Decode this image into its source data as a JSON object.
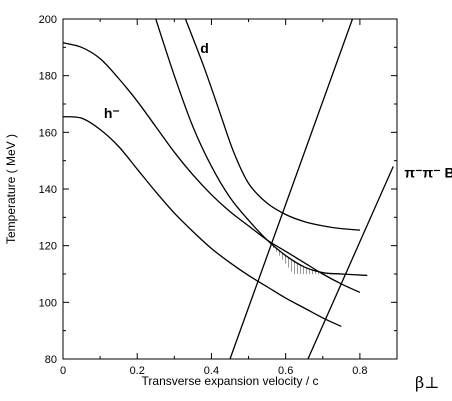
{
  "chart_data": {
    "type": "line",
    "title": "",
    "xlabel": "Transverse expansion velocity / c",
    "ylabel": "Temperature ( MeV )",
    "beta_symbol": "β⊥",
    "xlim": [
      0,
      0.9
    ],
    "ylim": [
      80,
      200
    ],
    "x_ticks": [
      0,
      0.2,
      0.4,
      0.6,
      0.8
    ],
    "x_tick_labels": [
      "0",
      "0.2",
      "0.4",
      "0.6",
      "0.8"
    ],
    "y_ticks": [
      80,
      100,
      120,
      140,
      160,
      180,
      200
    ],
    "y_tick_labels": [
      "80",
      "100",
      "120",
      "140",
      "160",
      "180",
      "200"
    ],
    "grid": false,
    "curve_labels": [
      {
        "text": "h⁻",
        "x": 0.11,
        "y": 165
      },
      {
        "text": "d",
        "x": 0.37,
        "y": 188
      },
      {
        "text": "π⁻π⁻ BE",
        "x": 0.92,
        "y": 144
      }
    ],
    "series": [
      {
        "values": [
          [
            0,
            191.6
          ],
          [
            0.05,
            190
          ],
          [
            0.1,
            186
          ],
          [
            0.15,
            179
          ],
          [
            0.2,
            171
          ],
          [
            0.25,
            162
          ],
          [
            0.3,
            153
          ],
          [
            0.35,
            145
          ],
          [
            0.4,
            138
          ],
          [
            0.45,
            132
          ],
          [
            0.5,
            127
          ],
          [
            0.55,
            122
          ],
          [
            0.6,
            118
          ],
          [
            0.65,
            114
          ],
          [
            0.7,
            110
          ],
          [
            0.75,
            106.5
          ],
          [
            0.8,
            103.5
          ]
        ]
      },
      {
        "values": [
          [
            0,
            165.5
          ],
          [
            0.05,
            165
          ],
          [
            0.1,
            161
          ],
          [
            0.15,
            155
          ],
          [
            0.2,
            147
          ],
          [
            0.25,
            139
          ],
          [
            0.3,
            131.5
          ],
          [
            0.35,
            125
          ],
          [
            0.4,
            119
          ],
          [
            0.45,
            114
          ],
          [
            0.5,
            109.5
          ],
          [
            0.55,
            105.5
          ],
          [
            0.6,
            101.5
          ],
          [
            0.65,
            98
          ],
          [
            0.7,
            94.5
          ],
          [
            0.75,
            91.5
          ]
        ]
      },
      {
        "values": [
          [
            0.25,
            200
          ],
          [
            0.3,
            180
          ],
          [
            0.35,
            162
          ],
          [
            0.4,
            148
          ],
          [
            0.45,
            137
          ],
          [
            0.5,
            129
          ],
          [
            0.55,
            122
          ],
          [
            0.6,
            116.5
          ],
          [
            0.65,
            112.5
          ],
          [
            0.7,
            110.5
          ],
          [
            0.75,
            110
          ],
          [
            0.82,
            109.5
          ]
        ]
      },
      {
        "values": [
          [
            0.33,
            200
          ],
          [
            0.38,
            183
          ],
          [
            0.42,
            168
          ],
          [
            0.46,
            153
          ],
          [
            0.5,
            142
          ],
          [
            0.55,
            135
          ],
          [
            0.6,
            131
          ],
          [
            0.65,
            128.5
          ],
          [
            0.7,
            127
          ],
          [
            0.75,
            126
          ],
          [
            0.8,
            125.5
          ]
        ]
      },
      {
        "values": [
          [
            0.45,
            80
          ],
          [
            0.78,
            200
          ]
        ]
      },
      {
        "values": [
          [
            0.66,
            80
          ],
          [
            0.89,
            148
          ]
        ]
      }
    ],
    "shaded_region": {
      "pattern": "hatched",
      "vertices": [
        [
          0.527,
          126
        ],
        [
          0.62,
          110
        ],
        [
          0.75,
          109.8
        ],
        [
          0.72,
          110.3
        ],
        [
          0.66,
          112
        ],
        [
          0.6,
          116.5
        ],
        [
          0.55,
          122
        ]
      ]
    }
  }
}
